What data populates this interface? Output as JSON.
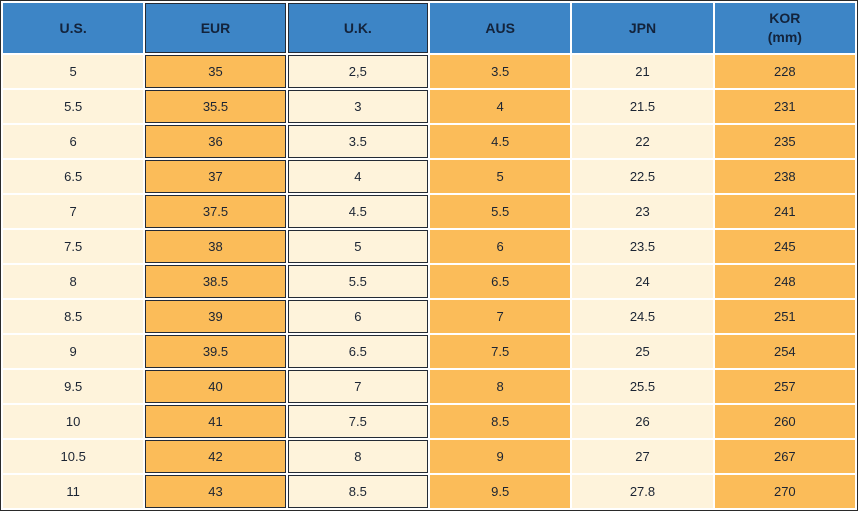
{
  "colors": {
    "header_bg": "#3D85C6",
    "header_text": "#13233B",
    "orange": "#FBBC59",
    "cream": "#FEF3DB",
    "border_dark": "#232A35",
    "text": "#1B2433"
  },
  "chart_data": {
    "type": "table",
    "columns": [
      {
        "id": "us",
        "label": "U.S."
      },
      {
        "id": "eur",
        "label": "EUR"
      },
      {
        "id": "uk",
        "label": "U.K."
      },
      {
        "id": "aus",
        "label": "AUS"
      },
      {
        "id": "jpn",
        "label": "JPN"
      },
      {
        "id": "kor",
        "label": "KOR",
        "sublabel": "(mm)"
      }
    ],
    "rows": [
      [
        "5",
        "35",
        "2,5",
        "3.5",
        "21",
        "228"
      ],
      [
        "5.5",
        "35.5",
        "3",
        "4",
        "21.5",
        "231"
      ],
      [
        "6",
        "36",
        "3.5",
        "4.5",
        "22",
        "235"
      ],
      [
        "6.5",
        "37",
        "4",
        "5",
        "22.5",
        "238"
      ],
      [
        "7",
        "37.5",
        "4.5",
        "5.5",
        "23",
        "241"
      ],
      [
        "7.5",
        "38",
        "5",
        "6",
        "23.5",
        "245"
      ],
      [
        "8",
        "38.5",
        "5.5",
        "6.5",
        "24",
        "248"
      ],
      [
        "8.5",
        "39",
        "6",
        "7",
        "24.5",
        "251"
      ],
      [
        "9",
        "39.5",
        "6.5",
        "7.5",
        "25",
        "254"
      ],
      [
        "9.5",
        "40",
        "7",
        "8",
        "25.5",
        "257"
      ],
      [
        "10",
        "41",
        "7.5",
        "8.5",
        "26",
        "260"
      ],
      [
        "10.5",
        "42",
        "8",
        "9",
        "27",
        "267"
      ],
      [
        "11",
        "43",
        "8.5",
        "9.5",
        "27.8",
        "270"
      ]
    ]
  }
}
